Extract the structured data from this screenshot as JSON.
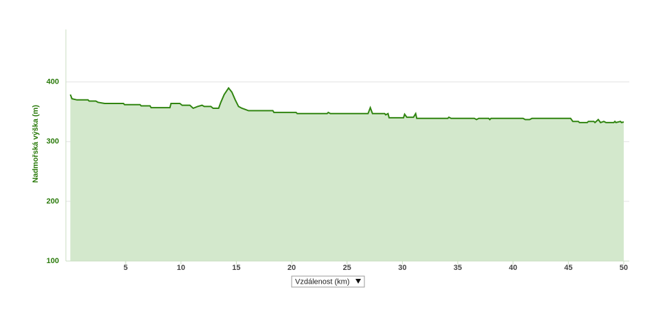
{
  "chart_data": {
    "type": "area",
    "y_label": "Nadmořská výška (m)",
    "x_label": "Vzdálenost (km)",
    "x": [
      0,
      0.15,
      0.6,
      1.6,
      1.7,
      2.3,
      2.5,
      3.1,
      4.8,
      4.9,
      6.3,
      6.4,
      7.2,
      7.3,
      9.0,
      9.1,
      9.9,
      10.1,
      10.8,
      11.1,
      11.5,
      11.9,
      12.1,
      12.7,
      12.9,
      13.4,
      13.6,
      13.9,
      14.3,
      14.6,
      14.9,
      15.2,
      15.5,
      15.8,
      16.1,
      18.3,
      18.4,
      20.4,
      20.5,
      23.2,
      23.3,
      23.5,
      26.9,
      27.1,
      27.3,
      28.4,
      28.5,
      28.7,
      28.8,
      30.1,
      30.2,
      30.4,
      31.0,
      31.2,
      31.3,
      34.1,
      34.2,
      34.4,
      36.5,
      36.7,
      36.9,
      37.8,
      37.9,
      38.0,
      40.9,
      41.1,
      41.5,
      41.7,
      45.2,
      45.4,
      45.9,
      46.0,
      46.7,
      46.8,
      47.3,
      47.4,
      47.7,
      47.9,
      48.2,
      48.4,
      49.1,
      49.2,
      49.3,
      49.7,
      49.8,
      50.0
    ],
    "values": [
      379,
      372,
      370,
      370,
      368,
      368,
      366,
      364,
      364,
      362,
      362,
      360,
      360,
      357,
      357,
      364,
      364,
      361,
      361,
      356,
      359,
      361,
      359,
      359,
      356,
      356,
      366,
      379,
      390,
      383,
      370,
      359,
      356,
      354,
      352,
      352,
      349,
      349,
      347,
      347,
      349,
      347,
      347,
      357,
      347,
      347,
      345,
      347,
      340,
      340,
      346,
      341,
      341,
      347,
      339,
      339,
      341,
      339,
      339,
      337,
      339,
      339,
      337,
      339,
      339,
      337,
      337,
      339,
      339,
      334,
      334,
      332,
      332,
      334,
      334,
      332,
      337,
      332,
      334,
      332,
      332,
      334,
      332,
      334,
      332,
      333
    ],
    "color": "#2f840f",
    "fill_color": "#d3e8cc",
    "xlim": [
      -0.4,
      50.5
    ],
    "xticks": [
      5,
      10,
      15,
      20,
      25,
      30,
      35,
      40,
      45,
      50
    ],
    "ylim": [
      100,
      488
    ],
    "yticks": [
      100,
      200,
      300,
      400
    ],
    "grid": true
  }
}
